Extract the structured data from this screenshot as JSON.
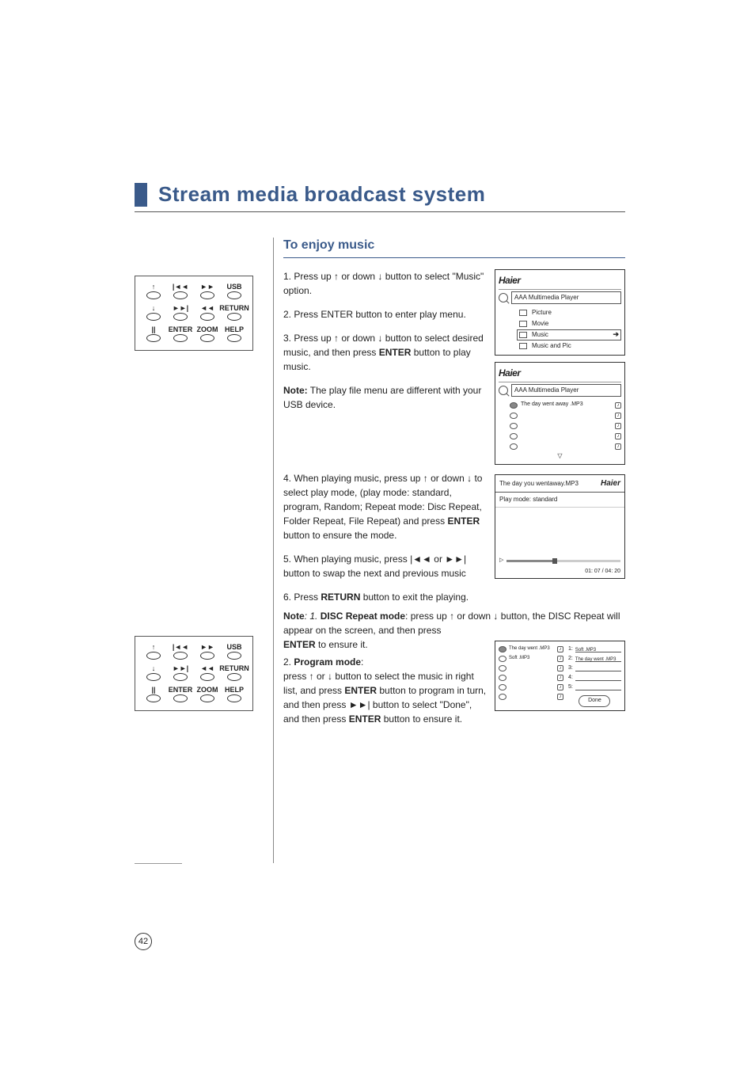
{
  "page_number": "42",
  "main_title": "Stream media broadcast system",
  "section_title": "To enjoy music",
  "remote": {
    "rows": [
      [
        {
          "icon": "↑",
          "label": ""
        },
        {
          "icon": "|◄◄",
          "label": ""
        },
        {
          "icon": "►►",
          "label": ""
        },
        {
          "icon": "",
          "label": "USB"
        }
      ],
      [
        {
          "icon": "↓",
          "label": ""
        },
        {
          "icon": "►►|",
          "label": ""
        },
        {
          "icon": "◄◄",
          "label": ""
        },
        {
          "icon": "",
          "label": "RETURN"
        }
      ],
      [
        {
          "icon": "||",
          "label": ""
        },
        {
          "icon": "",
          "label": "ENTER"
        },
        {
          "icon": "",
          "label": "ZOOM"
        },
        {
          "icon": "",
          "label": "HELP"
        }
      ]
    ]
  },
  "steps": {
    "s1": "1. Press up ↑ or down ↓   button to select \"Music\" option.",
    "s2": "2. Press ENTER button to enter  play menu.",
    "s3a": "3. Press up ↑ or down ↓  button to select desired music, and then press ",
    "s3b": "ENTER",
    "s3c": " button to play music.",
    "note1a": "Note:",
    "note1b": " The play file menu are different with your USB device.",
    "s4a": "4. When playing music, press up ↑ or down ↓  to select play mode, (play mode: standard, program, Random; Repeat mode: Disc Repeat, Folder Repeat, File Repeat) and press ",
    "s4b": "ENTER",
    "s4c": " button to ensure the mode.",
    "s5": "5. When playing music, press  |◄◄ or ►►|   button to swap the next and previous music",
    "s6a": "6. Press ",
    "s6b": "RETURN",
    "s6c": " button to exit the playing.",
    "n2a": "Note",
    "n2b": ": 1. ",
    "n2c": "DISC Repeat mode",
    "n2d": ": press up ↑ or down ↓  button, the DISC Repeat will appear on the screen, and then press ",
    "n2e": "ENTER",
    "n2f": " to ensure it.",
    "pm1": "2. ",
    "pm2": "Program mode",
    "pm3": ":",
    "pm4": "press  ↑ or  ↓  button to select the music in right list, and press ",
    "pm5": "ENTER",
    "pm6": " button to program in turn, and then press  ►►|  button to select \"Done\", and then press ",
    "pm7": "ENTER",
    "pm8": " button to ensure it."
  },
  "haier": "Haier",
  "panel_a": {
    "title": "AAA Multimedia Player",
    "items": [
      "Picture",
      "Movie",
      "Music",
      "Music and Pic"
    ],
    "selected_index": 2
  },
  "panel_b": {
    "title": "AAA Multimedia Player",
    "file": "The day went away .MP3"
  },
  "panel_c": {
    "track": "The day you wentaway.MP3",
    "mode": "Play mode:  standard",
    "time": "01:  07 / 04:  20"
  },
  "panel_d": {
    "left_rows": [
      "The day went  .MP3",
      "Soft .MP3",
      "",
      "",
      "",
      ""
    ],
    "right_slots": [
      "Soft .MP3",
      "The day went  .MP3",
      "",
      "",
      ""
    ],
    "done": "Done"
  }
}
